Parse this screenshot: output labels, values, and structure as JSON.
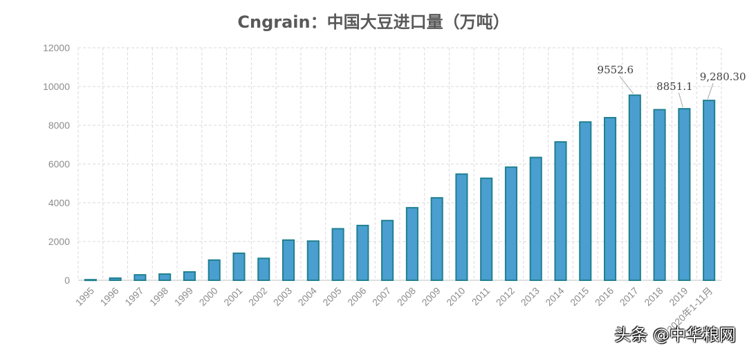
{
  "watermark": "头条 @中华粮网",
  "chart_data": {
    "type": "bar",
    "title": "Cngrain：中国大豆进口量（万吨）",
    "xlabel": "",
    "ylabel": "",
    "ylim": [
      0,
      12000
    ],
    "yticks": [
      "0",
      "2000",
      "4000",
      "6000",
      "8000",
      "10000",
      "12000"
    ],
    "grid": true,
    "categories": [
      "1995",
      "1996",
      "1997",
      "1998",
      "1999",
      "2000",
      "2001",
      "2002",
      "2003",
      "2004",
      "2005",
      "2006",
      "2007",
      "2008",
      "2009",
      "2010",
      "2011",
      "2012",
      "2013",
      "2014",
      "2015",
      "2016",
      "2017",
      "2018",
      "2019",
      "2020年1-11月"
    ],
    "values": [
      30,
      111,
      280,
      320,
      432,
      1042,
      1394,
      1131,
      2074,
      2023,
      2659,
      2827,
      3082,
      3744,
      4255,
      5480,
      5264,
      5838,
      6338,
      7140,
      8169,
      8391,
      9552.6,
      8803,
      8851.1,
      9280.3
    ],
    "data_labels": [
      {
        "index": 22,
        "text": "9552.6"
      },
      {
        "index": 24,
        "text": "8851.1"
      },
      {
        "index": 25,
        "text": "9,280.30"
      }
    ],
    "colors": {
      "bar_fill": "#4a9fd0",
      "bar_stroke": "#1f7f8f",
      "grid": "#d9d9d9",
      "axis": "#bfbfbf",
      "leader": "#a6a6a6"
    }
  }
}
